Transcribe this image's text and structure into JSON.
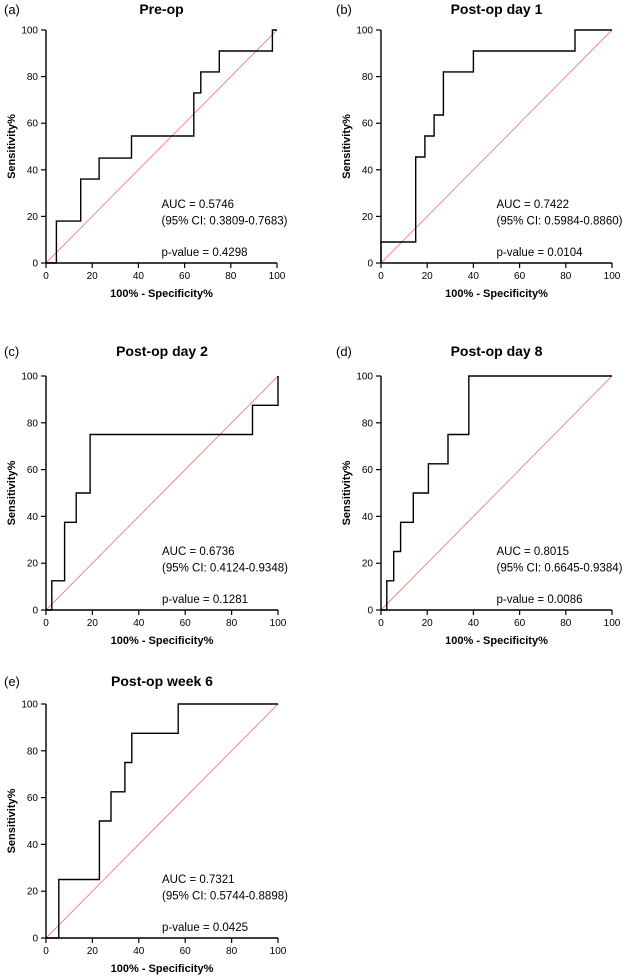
{
  "chart_data": [
    {
      "type": "line",
      "panel_tag": "(a)",
      "title": "Pre-op",
      "xlabel": "100% - Specificity%",
      "ylabel": "Sensitivity%",
      "xlim": [
        0,
        100
      ],
      "ylim": [
        0,
        100
      ],
      "xticks": [
        "0",
        "20",
        "40",
        "60",
        "80",
        "100"
      ],
      "yticks": [
        "0",
        "20",
        "40",
        "60",
        "80",
        "100"
      ],
      "series": [
        {
          "name": "ROC curve",
          "x": [
            0,
            4.5,
            4.5,
            15,
            15,
            23,
            23,
            37,
            37,
            64,
            64,
            67,
            67,
            71,
            71,
            75,
            75,
            98,
            98,
            100
          ],
          "y": [
            0,
            0,
            18,
            18,
            36,
            36,
            45,
            45,
            54.5,
            54.5,
            73,
            73,
            82,
            82,
            82,
            82,
            91,
            91,
            100,
            100
          ]
        },
        {
          "name": "Reference line",
          "x": [
            0,
            100
          ],
          "y": [
            0,
            100
          ]
        }
      ],
      "annotations": {
        "auc": "AUC = 0.5746",
        "ci": "(95% CI: 0.3809-0.7683)",
        "p": "p-value = 0.4298"
      }
    },
    {
      "type": "line",
      "panel_tag": "(b)",
      "title": "Post-op day 1",
      "xlabel": "100% - Specificity%",
      "ylabel": "Sensitivity%",
      "xlim": [
        0,
        100
      ],
      "ylim": [
        0,
        100
      ],
      "xticks": [
        "0",
        "20",
        "40",
        "60",
        "80",
        "100"
      ],
      "yticks": [
        "0",
        "20",
        "40",
        "60",
        "80",
        "100"
      ],
      "series": [
        {
          "name": "ROC curve",
          "x": [
            0,
            0,
            15,
            15,
            19,
            19,
            23,
            23,
            27,
            27,
            40,
            40,
            84,
            84,
            100
          ],
          "y": [
            0,
            9,
            9,
            45.5,
            45.5,
            54.5,
            54.5,
            63.5,
            63.5,
            82,
            82,
            91,
            91,
            100,
            100
          ]
        },
        {
          "name": "Reference line",
          "x": [
            0,
            100
          ],
          "y": [
            0,
            100
          ]
        }
      ],
      "annotations": {
        "auc": "AUC = 0.7422",
        "ci": "(95% CI: 0.5984-0.8860)",
        "p": "p-value = 0.0104"
      }
    },
    {
      "type": "line",
      "panel_tag": "(c)",
      "title": "Post-op day 2",
      "xlabel": "100% - Specificity%",
      "ylabel": "Sensitivity%",
      "xlim": [
        0,
        100
      ],
      "ylim": [
        0,
        100
      ],
      "xticks": [
        "0",
        "20",
        "40",
        "60",
        "80",
        "100"
      ],
      "yticks": [
        "0",
        "20",
        "40",
        "60",
        "80",
        "100"
      ],
      "series": [
        {
          "name": "ROC curve",
          "x": [
            0,
            2.5,
            2.5,
            8,
            8,
            13,
            13,
            19,
            19,
            89,
            89,
            100,
            100
          ],
          "y": [
            0,
            0,
            12.5,
            12.5,
            37.5,
            37.5,
            50,
            50,
            75,
            75,
            87.5,
            87.5,
            100
          ]
        },
        {
          "name": "Reference line",
          "x": [
            0,
            100
          ],
          "y": [
            0,
            100
          ]
        }
      ],
      "annotations": {
        "auc": "AUC = 0.6736",
        "ci": "(95% CI: 0.4124-0.9348)",
        "p": "p-value = 0.1281"
      }
    },
    {
      "type": "line",
      "panel_tag": "(d)",
      "title": "Post-op day 8",
      "xlabel": "100% - Specificity%",
      "ylabel": "Sensitivity%",
      "xlim": [
        0,
        100
      ],
      "ylim": [
        0,
        100
      ],
      "xticks": [
        "0",
        "20",
        "40",
        "60",
        "80",
        "100"
      ],
      "yticks": [
        "0",
        "20",
        "40",
        "60",
        "80",
        "100"
      ],
      "series": [
        {
          "name": "ROC curve",
          "x": [
            0,
            2.5,
            2.5,
            5.5,
            5.5,
            8.5,
            8.5,
            14,
            14,
            20.5,
            20.5,
            29,
            29,
            38,
            38,
            100
          ],
          "y": [
            0,
            0,
            12.5,
            12.5,
            25,
            25,
            37.5,
            37.5,
            50,
            50,
            62.5,
            62.5,
            75,
            75,
            100,
            100
          ]
        },
        {
          "name": "Reference line",
          "x": [
            0,
            100
          ],
          "y": [
            0,
            100
          ]
        }
      ],
      "annotations": {
        "auc": "AUC = 0.8015",
        "ci": "(95% CI: 0.6645-0.9384)",
        "p": "p-value = 0.0086"
      }
    },
    {
      "type": "line",
      "panel_tag": "(e)",
      "title": "Post-op week 6",
      "xlabel": "100% - Specificity%",
      "ylabel": "Sensitivity%",
      "xlim": [
        0,
        100
      ],
      "ylim": [
        0,
        100
      ],
      "xticks": [
        "0",
        "20",
        "40",
        "60",
        "80",
        "100"
      ],
      "yticks": [
        "0",
        "20",
        "40",
        "60",
        "80",
        "100"
      ],
      "series": [
        {
          "name": "ROC curve",
          "x": [
            0,
            5.5,
            5.5,
            23,
            23,
            28,
            28,
            34,
            34,
            37,
            37,
            57,
            57,
            100
          ],
          "y": [
            0,
            0,
            25,
            25,
            50,
            50,
            62.5,
            62.5,
            75,
            75,
            87.5,
            87.5,
            100,
            100
          ]
        },
        {
          "name": "Reference line",
          "x": [
            0,
            100
          ],
          "y": [
            0,
            100
          ]
        }
      ],
      "annotations": {
        "auc": "AUC = 0.7321",
        "ci": "(95% CI: 0.5744-0.8898)",
        "p": "p-value = 0.0425"
      }
    }
  ],
  "colors": {
    "curve": "#000000",
    "reference": "#f08080",
    "axis": "#000000"
  }
}
